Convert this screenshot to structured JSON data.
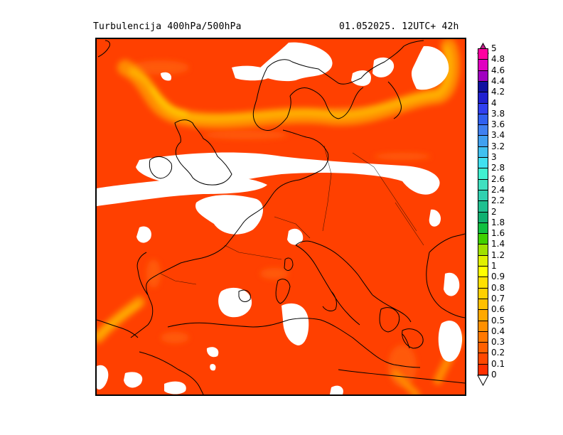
{
  "title": {
    "left": "Turbulencija 400hPa/500hPa",
    "right": "01.052025.   12UTC+ 42h"
  },
  "map": {
    "variable": "Turbulencija",
    "levels": "400hPa/500hPa",
    "region": "Europe",
    "background_color": "#ff4000",
    "land_outline_color": "#000000",
    "missing_color": "#ffffff"
  },
  "legend": {
    "labels": [
      "5",
      "4.8",
      "4.6",
      "4.4",
      "4.2",
      "4",
      "3.8",
      "3.6",
      "3.4",
      "3.2",
      "3",
      "2.8",
      "2.6",
      "2.4",
      "2.2",
      "2",
      "1.8",
      "1.6",
      "1.4",
      "1.2",
      "1",
      "0.9",
      "0.8",
      "0.7",
      "0.6",
      "0.5",
      "0.4",
      "0.3",
      "0.2",
      "0.1",
      "0"
    ],
    "colors": [
      "#ff00a0",
      "#e000c0",
      "#a000c0",
      "#1010a0",
      "#2020d0",
      "#3040f0",
      "#3060f0",
      "#4080f0",
      "#40a0f0",
      "#40c0f0",
      "#40e0f0",
      "#40f0d0",
      "#40e0c0",
      "#30d0b0",
      "#20c090",
      "#10b070",
      "#10c040",
      "#40d000",
      "#a0e000",
      "#e0f000",
      "#ffff00",
      "#ffe000",
      "#ffd000",
      "#ffc000",
      "#ffa800",
      "#ff9000",
      "#ff7800",
      "#ff6000",
      "#ff4800",
      "#ff3000"
    ],
    "top_arrow_color": "#c0208c"
  }
}
